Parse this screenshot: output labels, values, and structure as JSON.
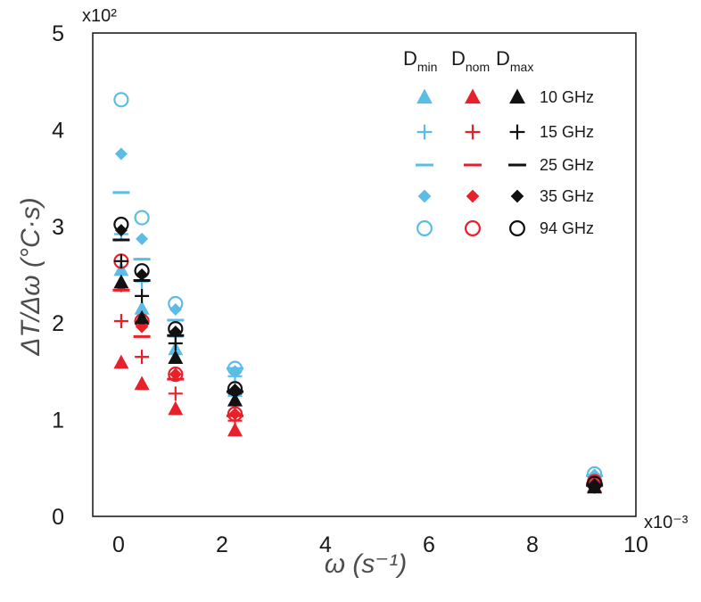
{
  "chart_data": {
    "type": "scatter",
    "title": "",
    "xlabel": "ω (s⁻¹)",
    "ylabel": "ΔT/Δω (°C·s)",
    "x_multiplier": "x10⁻³",
    "y_multiplier": "x10²",
    "xlim": [
      -0.5,
      10
    ],
    "ylim": [
      0,
      5
    ],
    "xticks": [
      "0",
      "2",
      "4",
      "6",
      "8",
      "10"
    ],
    "yticks": [
      "0",
      "1",
      "2",
      "3",
      "4",
      "5"
    ],
    "grid": false,
    "legend_position": "top-right",
    "legend_columns": [
      {
        "name": "D",
        "sub": "min",
        "color": "#5bbde6"
      },
      {
        "name": "D",
        "sub": "nom",
        "color": "#e8202a"
      },
      {
        "name": "D",
        "sub": "max",
        "color": "#111111"
      }
    ],
    "frequencies": [
      {
        "label": "10 GHz",
        "marker": "triangle"
      },
      {
        "label": "15 GHz",
        "marker": "plus"
      },
      {
        "label": "25 GHz",
        "marker": "dash"
      },
      {
        "label": "35 GHz",
        "marker": "diamond"
      },
      {
        "label": "94 GHz",
        "marker": "circle"
      }
    ],
    "x": [
      0.05,
      0.45,
      1.1,
      2.25,
      9.2
    ],
    "series": [
      {
        "name": "Dmin 10 GHz",
        "group": "Dmin",
        "freq": "10 GHz",
        "marker": "triangle",
        "color": "#5bbde6",
        "values": [
          2.55,
          2.15,
          1.73,
          1.3,
          0.39
        ]
      },
      {
        "name": "Dmin 15 GHz",
        "group": "Dmin",
        "freq": "15 GHz",
        "marker": "plus",
        "color": "#5bbde6",
        "values": [
          2.92,
          2.43,
          1.86,
          1.45,
          0.41
        ]
      },
      {
        "name": "Dmin 25 GHz",
        "group": "Dmin",
        "freq": "25 GHz",
        "marker": "dash",
        "color": "#5bbde6",
        "values": [
          3.35,
          2.66,
          2.03,
          1.53,
          0.42
        ]
      },
      {
        "name": "Dmin 35 GHz",
        "group": "Dmin",
        "freq": "35 GHz",
        "marker": "diamond",
        "color": "#5bbde6",
        "values": [
          3.75,
          2.87,
          2.14,
          1.5,
          0.43
        ]
      },
      {
        "name": "Dmin 94 GHz",
        "group": "Dmin",
        "freq": "94 GHz",
        "marker": "circle",
        "color": "#5bbde6",
        "values": [
          4.31,
          3.09,
          2.2,
          1.53,
          0.44
        ]
      },
      {
        "name": "Dnom 10 GHz",
        "group": "Dnom",
        "freq": "10 GHz",
        "marker": "triangle",
        "color": "#e8202a",
        "values": [
          1.59,
          1.37,
          1.11,
          0.89,
          0.31
        ]
      },
      {
        "name": "Dnom 15 GHz",
        "group": "Dnom",
        "freq": "15 GHz",
        "marker": "plus",
        "color": "#e8202a",
        "values": [
          2.02,
          1.65,
          1.27,
          0.99,
          0.33
        ]
      },
      {
        "name": "Dnom 25 GHz",
        "group": "Dnom",
        "freq": "25 GHz",
        "marker": "dash",
        "color": "#e8202a",
        "values": [
          2.34,
          1.86,
          1.42,
          1.04,
          0.34
        ]
      },
      {
        "name": "Dnom 35 GHz",
        "group": "Dnom",
        "freq": "35 GHz",
        "marker": "diamond",
        "color": "#e8202a",
        "values": [
          2.38,
          1.96,
          1.47,
          1.06,
          0.35
        ]
      },
      {
        "name": "Dnom 94 GHz",
        "group": "Dnom",
        "freq": "94 GHz",
        "marker": "circle",
        "color": "#e8202a",
        "values": [
          2.64,
          2.02,
          1.47,
          1.06,
          0.36
        ]
      },
      {
        "name": "Dmax 10 GHz",
        "group": "Dmax",
        "freq": "10 GHz",
        "marker": "triangle",
        "color": "#111111",
        "values": [
          2.42,
          2.05,
          1.64,
          1.2,
          0.3
        ]
      },
      {
        "name": "Dmax 15 GHz",
        "group": "Dmax",
        "freq": "15 GHz",
        "marker": "plus",
        "color": "#111111",
        "values": [
          2.64,
          2.28,
          1.79,
          1.27,
          0.31
        ]
      },
      {
        "name": "Dmax 25 GHz",
        "group": "Dmax",
        "freq": "25 GHz",
        "marker": "dash",
        "color": "#111111",
        "values": [
          2.86,
          2.44,
          1.87,
          1.29,
          0.32
        ]
      },
      {
        "name": "Dmax 35 GHz",
        "group": "Dmax",
        "freq": "35 GHz",
        "marker": "diamond",
        "color": "#111111",
        "values": [
          2.96,
          2.5,
          1.91,
          1.31,
          0.33
        ]
      },
      {
        "name": "Dmax 94 GHz",
        "group": "Dmax",
        "freq": "94 GHz",
        "marker": "circle",
        "color": "#111111",
        "values": [
          3.02,
          2.54,
          1.94,
          1.32,
          0.34
        ]
      }
    ]
  }
}
